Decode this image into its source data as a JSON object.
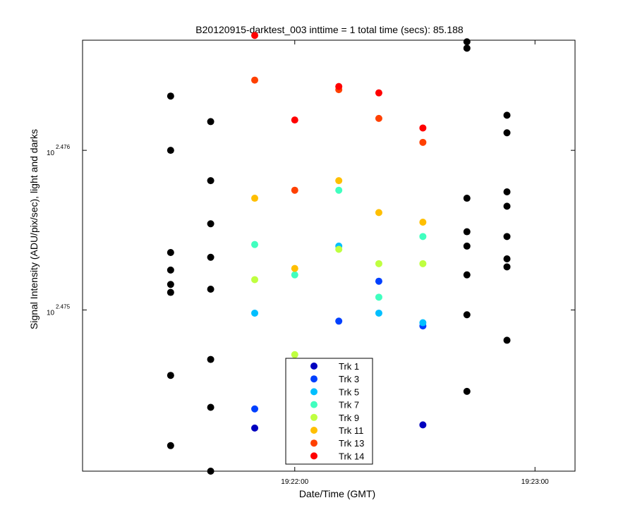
{
  "chart_data": {
    "type": "scatter",
    "title": "B20120915-darktest_003 inttime = 1 total time (secs): 85.188",
    "xlabel": "Date/Time (GMT)",
    "ylabel": "Signal Intensity (ADU/pix/sec), light and darks",
    "x_ticks": [
      "19:22:00",
      "19:23:00"
    ],
    "y_ticks": [
      {
        "base": "10",
        "exponent": "2.475",
        "value": 2.475
      },
      {
        "base": "10",
        "exponent": "2.476",
        "value": 2.476
      }
    ],
    "y_scale": "log10",
    "xlim": [
      "19:21:07",
      "19:23:10"
    ],
    "ylim_exponent": [
      2.47399,
      2.47669
    ],
    "legend_position": "bottom-center",
    "grid": false,
    "dark_series_color": "#000000",
    "series": [
      {
        "name": "Trk 1",
        "color": "#0000bf",
        "points": [
          [
            "19:21:50",
            2.47426
          ],
          [
            "19:22:00",
            2.47432
          ],
          [
            "19:22:32",
            2.47428
          ]
        ]
      },
      {
        "name": "Trk 3",
        "color": "#0040ff",
        "points": [
          [
            "19:21:50",
            2.47438
          ],
          [
            "19:22:00",
            2.47438
          ],
          [
            "19:22:11",
            2.47493
          ],
          [
            "19:22:21",
            2.47518
          ],
          [
            "19:22:32",
            2.4749
          ]
        ]
      },
      {
        "name": "Trk 5",
        "color": "#00bfff",
        "points": [
          [
            "19:21:50",
            2.47498
          ],
          [
            "19:22:00",
            2.47461
          ],
          [
            "19:22:11",
            2.4754
          ],
          [
            "19:22:21",
            2.47498
          ],
          [
            "19:22:32",
            2.47492
          ]
        ]
      },
      {
        "name": "Trk 7",
        "color": "#40ffbf",
        "points": [
          [
            "19:21:50",
            2.47541
          ],
          [
            "19:22:00",
            2.47522
          ],
          [
            "19:22:11",
            2.47575
          ],
          [
            "19:22:21",
            2.47508
          ],
          [
            "19:22:32",
            2.47546
          ]
        ]
      },
      {
        "name": "Trk 9",
        "color": "#bfff40",
        "points": [
          [
            "19:21:50",
            2.47519
          ],
          [
            "19:22:00",
            2.47472
          ],
          [
            "19:22:11",
            2.47538
          ],
          [
            "19:22:21",
            2.47529
          ],
          [
            "19:22:32",
            2.47529
          ]
        ]
      },
      {
        "name": "Trk 11",
        "color": "#ffbf00",
        "points": [
          [
            "19:21:50",
            2.4757
          ],
          [
            "19:22:00",
            2.47526
          ],
          [
            "19:22:11",
            2.47581
          ],
          [
            "19:22:21",
            2.47561
          ],
          [
            "19:22:32",
            2.47555
          ]
        ]
      },
      {
        "name": "Trk 13",
        "color": "#ff4000",
        "points": [
          [
            "19:21:50",
            2.47644
          ],
          [
            "19:22:00",
            2.47575
          ],
          [
            "19:22:11",
            2.47638
          ],
          [
            "19:22:21",
            2.4762
          ],
          [
            "19:22:32",
            2.47605
          ]
        ]
      },
      {
        "name": "Trk 14",
        "color": "#ff0000",
        "points": [
          [
            "19:21:50",
            2.47672
          ],
          [
            "19:22:00",
            2.47619
          ],
          [
            "19:22:11",
            2.4764
          ],
          [
            "19:22:21",
            2.47636
          ],
          [
            "19:22:32",
            2.47614
          ]
        ]
      },
      {
        "name": "",
        "color": "#000000",
        "points": [
          [
            "19:21:29",
            2.47634
          ],
          [
            "19:21:29",
            2.476
          ],
          [
            "19:21:29",
            2.47536
          ],
          [
            "19:21:29",
            2.47525
          ],
          [
            "19:21:29",
            2.47516
          ],
          [
            "19:21:29",
            2.47511
          ],
          [
            "19:21:29",
            2.47459
          ],
          [
            "19:21:29",
            2.47415
          ],
          [
            "19:21:39",
            2.47618
          ],
          [
            "19:21:39",
            2.47581
          ],
          [
            "19:21:39",
            2.47554
          ],
          [
            "19:21:39",
            2.47533
          ],
          [
            "19:21:39",
            2.47513
          ],
          [
            "19:21:39",
            2.47469
          ],
          [
            "19:21:39",
            2.47439
          ],
          [
            "19:21:39",
            2.47399
          ],
          [
            "19:22:43",
            2.47668
          ],
          [
            "19:22:43",
            2.47664
          ],
          [
            "19:22:43",
            2.4757
          ],
          [
            "19:22:43",
            2.47549
          ],
          [
            "19:22:43",
            2.4754
          ],
          [
            "19:22:43",
            2.47522
          ],
          [
            "19:22:43",
            2.47497
          ],
          [
            "19:22:43",
            2.47449
          ],
          [
            "19:22:53",
            2.47622
          ],
          [
            "19:22:53",
            2.47611
          ],
          [
            "19:22:53",
            2.47574
          ],
          [
            "19:22:53",
            2.47565
          ],
          [
            "19:22:53",
            2.47546
          ],
          [
            "19:22:53",
            2.47532
          ],
          [
            "19:22:53",
            2.47527
          ],
          [
            "19:22:53",
            2.47481
          ]
        ]
      }
    ]
  }
}
